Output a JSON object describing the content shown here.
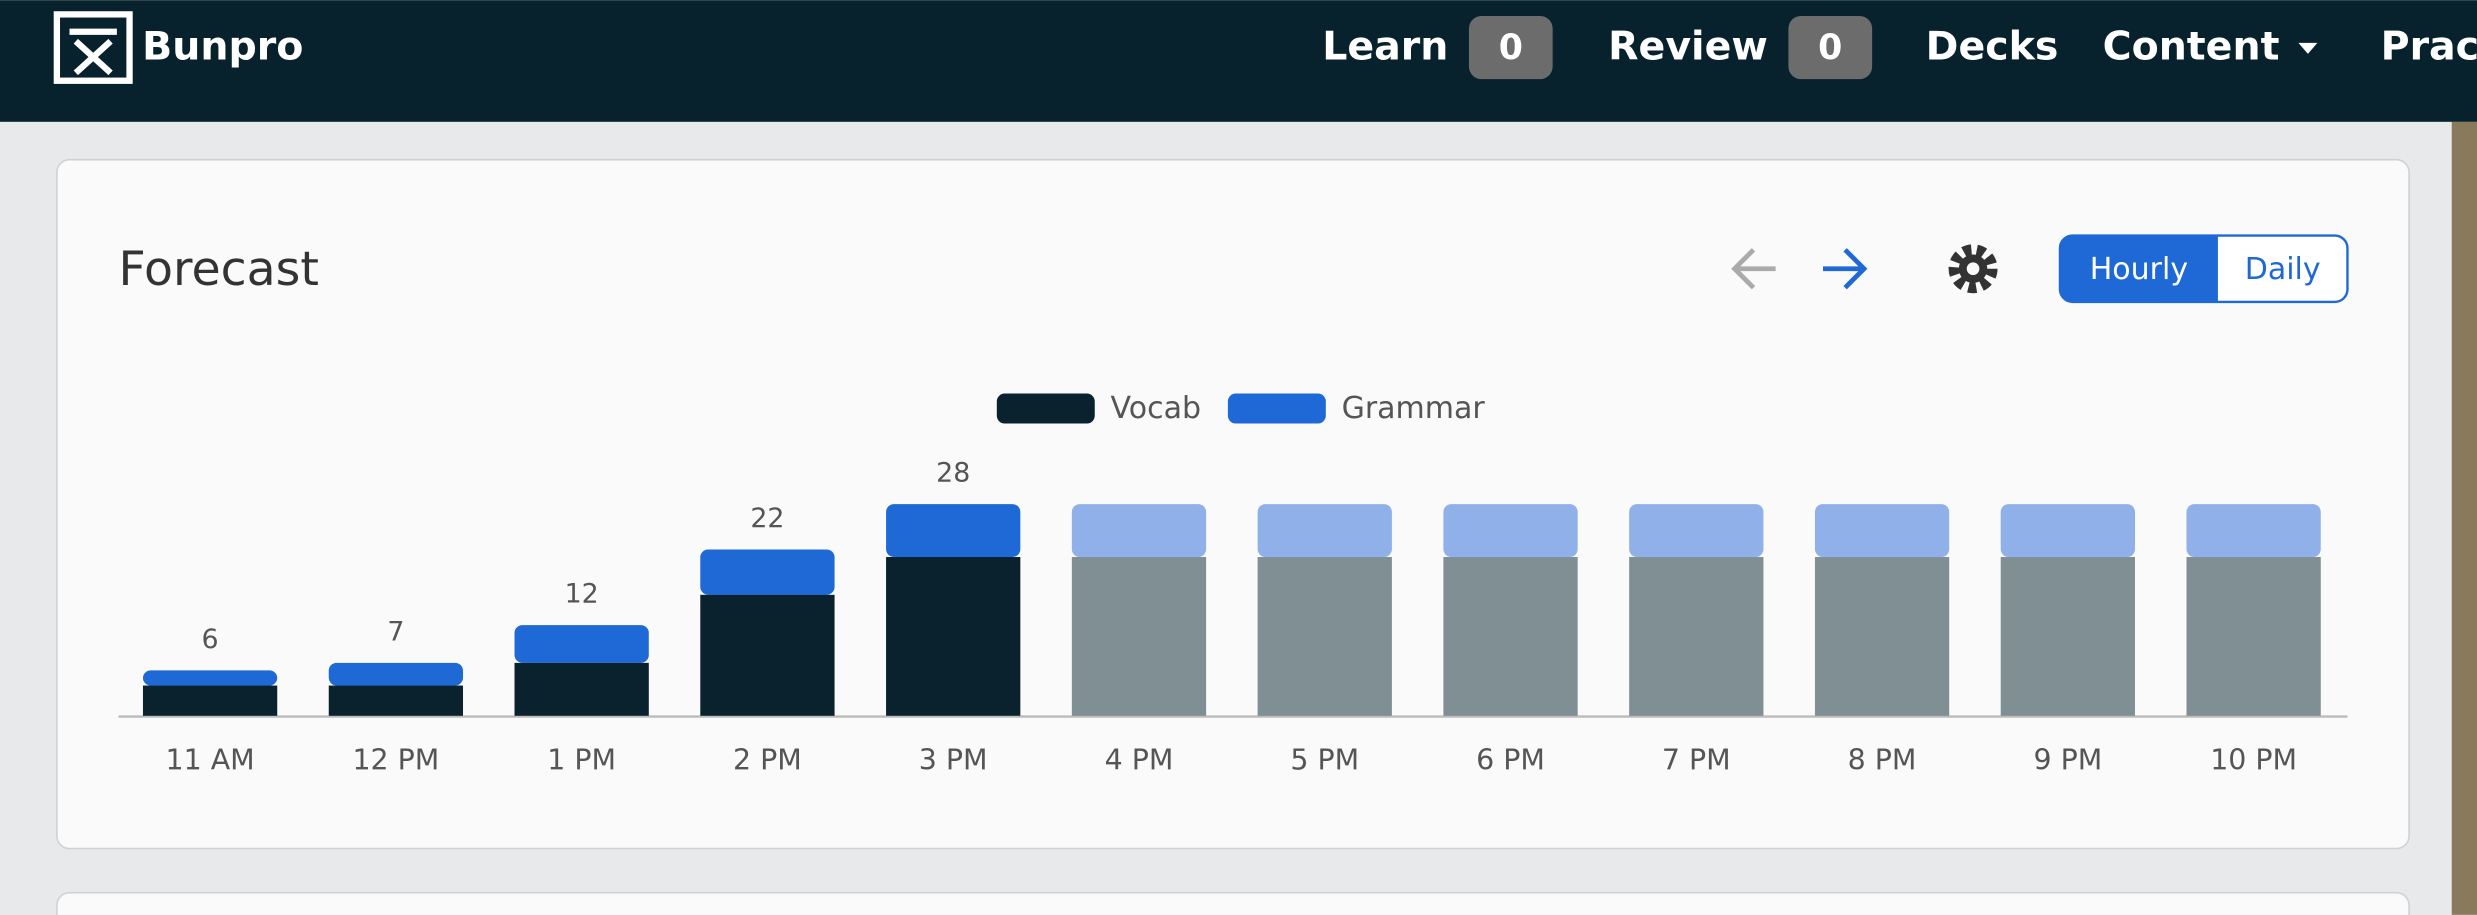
{
  "nav": {
    "brand": "Bunpro",
    "items": [
      {
        "label": "Learn",
        "badge": 0
      },
      {
        "label": "Review",
        "badge": 0
      },
      {
        "label": "Decks"
      },
      {
        "label": "Content"
      },
      {
        "label": "Practice"
      }
    ]
  },
  "controls": {
    "hourly": "Hourly",
    "daily": "Daily"
  },
  "chart_data": {
    "type": "bar",
    "stacked": true,
    "title": "Forecast",
    "categories": [
      "11 AM",
      "12 PM",
      "1 PM",
      "2 PM",
      "3 PM",
      "4 PM",
      "5 PM",
      "6 PM",
      "7 PM",
      "8 PM",
      "9 PM",
      "10 PM"
    ],
    "series": [
      {
        "name": "Vocab",
        "color": "#0a222d",
        "values": [
          4,
          4,
          7,
          16,
          21,
          21,
          21,
          21,
          21,
          21,
          21,
          21
        ],
        "colors": [
          "#0a222d",
          "#0a222d",
          "#0a222d",
          "#0a222d",
          "#0a222d",
          "#808f94",
          "#808f94",
          "#808f94",
          "#808f94",
          "#808f94",
          "#808f94",
          "#808f94"
        ]
      },
      {
        "name": "Grammar",
        "color": "#1f69d6",
        "values": [
          2,
          3,
          5,
          6,
          7,
          7,
          7,
          7,
          7,
          7,
          7,
          7
        ],
        "colors": [
          "#1f69d6",
          "#1f69d6",
          "#1f69d6",
          "#1f69d6",
          "#1f69d6",
          "#8fb0e9",
          "#8fb0e9",
          "#8fb0e9",
          "#8fb0e9",
          "#8fb0e9",
          "#8fb0e9",
          "#8fb0e9"
        ]
      }
    ],
    "totals": [
      6,
      7,
      12,
      22,
      28,
      null,
      null,
      null,
      null,
      null,
      null,
      null
    ],
    "ylim": [
      0,
      28
    ],
    "legend": "top"
  }
}
